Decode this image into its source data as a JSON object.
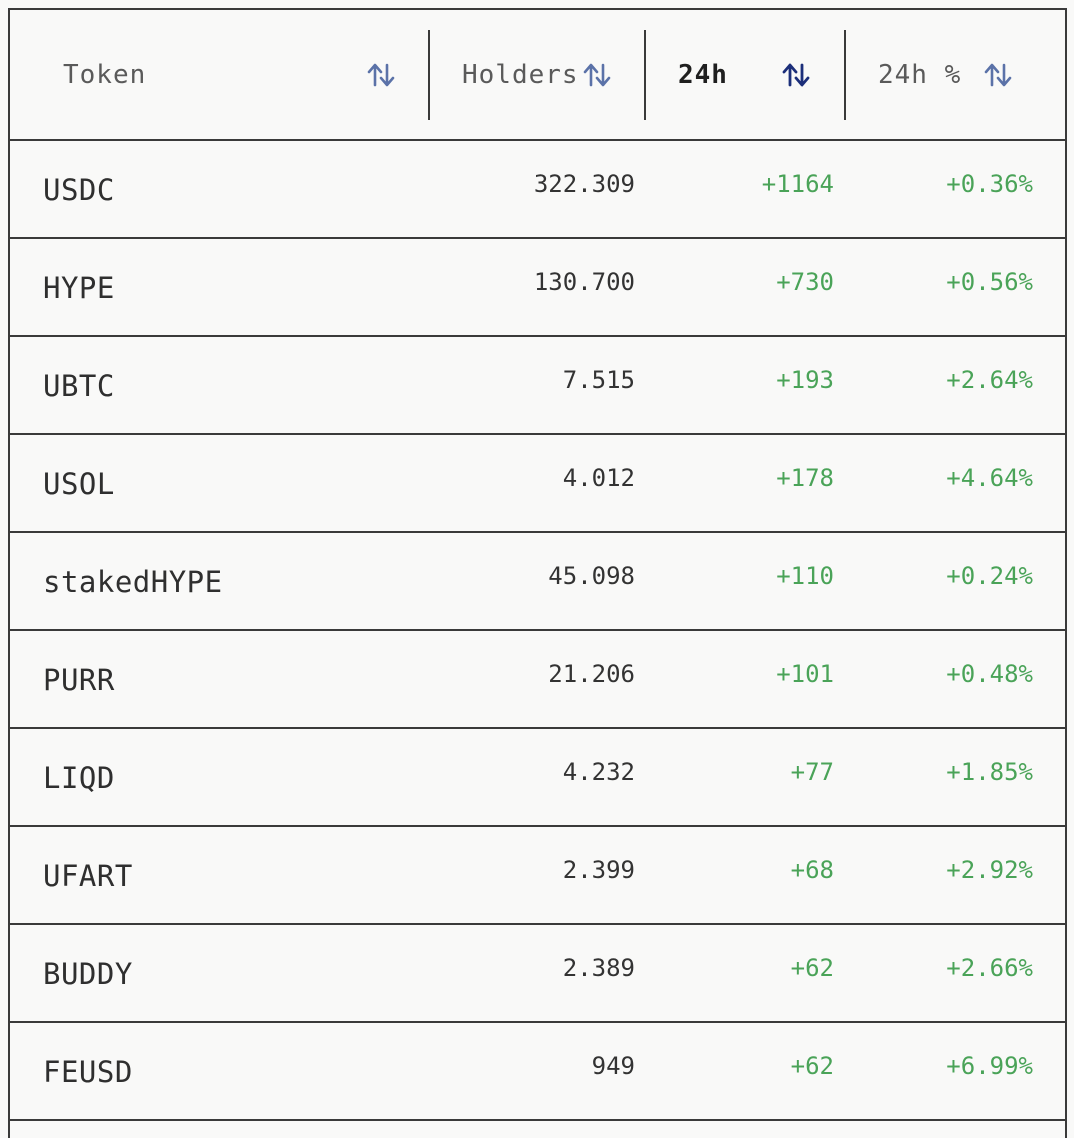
{
  "header": {
    "token_label": "Token",
    "holders_label": "Holders",
    "h24_label": "24h",
    "pct_label": "24h %"
  },
  "colors": {
    "positive": "#4aa358",
    "sort_icon_inactive": "#5b72a8",
    "sort_icon_active": "#1c2f7a",
    "border": "#3a3a3a"
  },
  "icons": {
    "sort": "sort-arrows-icon"
  },
  "rows": [
    {
      "token": "USDC",
      "holders": "322.309",
      "change": "+1164",
      "pct": "+0.36%"
    },
    {
      "token": "HYPE",
      "holders": "130.700",
      "change": "+730",
      "pct": "+0.56%"
    },
    {
      "token": "UBTC",
      "holders": "7.515",
      "change": "+193",
      "pct": "+2.64%"
    },
    {
      "token": "USOL",
      "holders": "4.012",
      "change": "+178",
      "pct": "+4.64%"
    },
    {
      "token": "stakedHYPE",
      "holders": "45.098",
      "change": "+110",
      "pct": "+0.24%"
    },
    {
      "token": "PURR",
      "holders": "21.206",
      "change": "+101",
      "pct": "+0.48%"
    },
    {
      "token": "LIQD",
      "holders": "4.232",
      "change": "+77",
      "pct": "+1.85%"
    },
    {
      "token": "UFART",
      "holders": "2.399",
      "change": "+68",
      "pct": "+2.92%"
    },
    {
      "token": "BUDDY",
      "holders": "2.389",
      "change": "+62",
      "pct": "+2.66%"
    },
    {
      "token": "FEUSD",
      "holders": "949",
      "change": "+62",
      "pct": "+6.99%"
    }
  ]
}
